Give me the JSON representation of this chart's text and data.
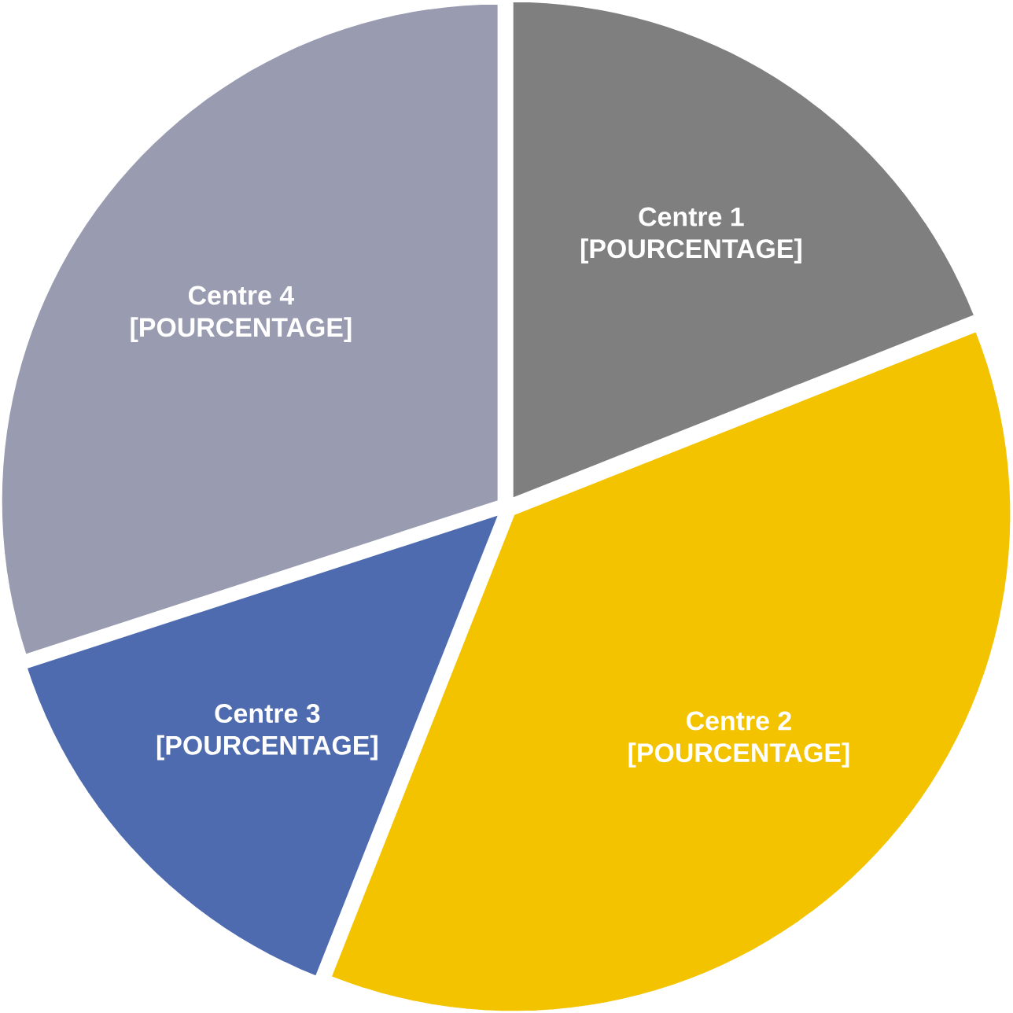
{
  "chart_data": {
    "type": "pie",
    "categories": [
      "Centre 1",
      "Centre 2",
      "Centre 3",
      "Centre 4"
    ],
    "values": [
      19,
      37,
      14,
      30
    ],
    "value_labels": [
      "[POURCENTAGE]",
      "[POURCENTAGE]",
      "[POURCENTAGE]",
      "[POURCENTAGE]"
    ],
    "colors": [
      "#7f7f7f",
      "#f3c300",
      "#4f6bb0",
      "#999bb0"
    ]
  }
}
